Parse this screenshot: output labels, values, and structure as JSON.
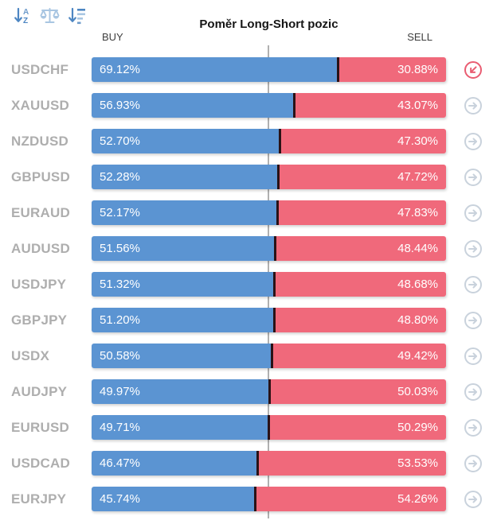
{
  "header": {
    "title": "Poměr Long-Short pozic",
    "buy_label": "BUY",
    "sell_label": "SELL"
  },
  "toolbar": {
    "sort_alpha_icon": "sort-alphabetical",
    "balance_icon": "balance-scale",
    "sort_amount_icon": "sort-by-value"
  },
  "colors": {
    "buy_bar": "#5b94d2",
    "sell_bar": "#f0697b",
    "bar_divider": "#2a1216",
    "symbol_label": "#aeaeae",
    "midline": "#b0b0b0",
    "action_icon_default": "#c9d2dc",
    "action_icon_active": "#e95d72",
    "toolbar_icon_dark": "#4d86c2",
    "toolbar_icon_light": "#a9c6e2"
  },
  "rows": [
    {
      "symbol": "USDCHF",
      "buy_pct": 69.12,
      "sell_pct": 30.88,
      "buy_label": "69.12%",
      "sell_label": "30.88%",
      "action_state": "active"
    },
    {
      "symbol": "XAUUSD",
      "buy_pct": 56.93,
      "sell_pct": 43.07,
      "buy_label": "56.93%",
      "sell_label": "43.07%",
      "action_state": "default"
    },
    {
      "symbol": "NZDUSD",
      "buy_pct": 52.7,
      "sell_pct": 47.3,
      "buy_label": "52.70%",
      "sell_label": "47.30%",
      "action_state": "default"
    },
    {
      "symbol": "GBPUSD",
      "buy_pct": 52.28,
      "sell_pct": 47.72,
      "buy_label": "52.28%",
      "sell_label": "47.72%",
      "action_state": "default"
    },
    {
      "symbol": "EURAUD",
      "buy_pct": 52.17,
      "sell_pct": 47.83,
      "buy_label": "52.17%",
      "sell_label": "47.83%",
      "action_state": "default"
    },
    {
      "symbol": "AUDUSD",
      "buy_pct": 51.56,
      "sell_pct": 48.44,
      "buy_label": "51.56%",
      "sell_label": "48.44%",
      "action_state": "default"
    },
    {
      "symbol": "USDJPY",
      "buy_pct": 51.32,
      "sell_pct": 48.68,
      "buy_label": "51.32%",
      "sell_label": "48.68%",
      "action_state": "default"
    },
    {
      "symbol": "GBPJPY",
      "buy_pct": 51.2,
      "sell_pct": 48.8,
      "buy_label": "51.20%",
      "sell_label": "48.80%",
      "action_state": "default"
    },
    {
      "symbol": "USDX",
      "buy_pct": 50.58,
      "sell_pct": 49.42,
      "buy_label": "50.58%",
      "sell_label": "49.42%",
      "action_state": "default"
    },
    {
      "symbol": "AUDJPY",
      "buy_pct": 49.97,
      "sell_pct": 50.03,
      "buy_label": "49.97%",
      "sell_label": "50.03%",
      "action_state": "default"
    },
    {
      "symbol": "EURUSD",
      "buy_pct": 49.71,
      "sell_pct": 50.29,
      "buy_label": "49.71%",
      "sell_label": "50.29%",
      "action_state": "default"
    },
    {
      "symbol": "USDCAD",
      "buy_pct": 46.47,
      "sell_pct": 53.53,
      "buy_label": "46.47%",
      "sell_label": "53.53%",
      "action_state": "default"
    },
    {
      "symbol": "EURJPY",
      "buy_pct": 45.74,
      "sell_pct": 54.26,
      "buy_label": "45.74%",
      "sell_label": "54.26%",
      "action_state": "default"
    }
  ],
  "chart_data": {
    "type": "bar",
    "orientation": "horizontal-stacked",
    "title": "Poměr Long-Short pozic",
    "categories": [
      "USDCHF",
      "XAUUSD",
      "NZDUSD",
      "GBPUSD",
      "EURAUD",
      "AUDUSD",
      "USDJPY",
      "GBPJPY",
      "USDX",
      "AUDJPY",
      "EURUSD",
      "USDCAD",
      "EURJPY"
    ],
    "series": [
      {
        "name": "BUY",
        "color": "#5b94d2",
        "values": [
          69.12,
          56.93,
          52.7,
          52.28,
          52.17,
          51.56,
          51.32,
          51.2,
          50.58,
          49.97,
          49.71,
          46.47,
          45.74
        ]
      },
      {
        "name": "SELL",
        "color": "#f0697b",
        "values": [
          30.88,
          43.07,
          47.3,
          47.72,
          47.83,
          48.44,
          48.68,
          48.8,
          49.42,
          50.03,
          50.29,
          53.53,
          54.26
        ]
      }
    ],
    "xlim": [
      0,
      100
    ],
    "units": "%",
    "annotations": [
      "50% midline marker"
    ]
  }
}
